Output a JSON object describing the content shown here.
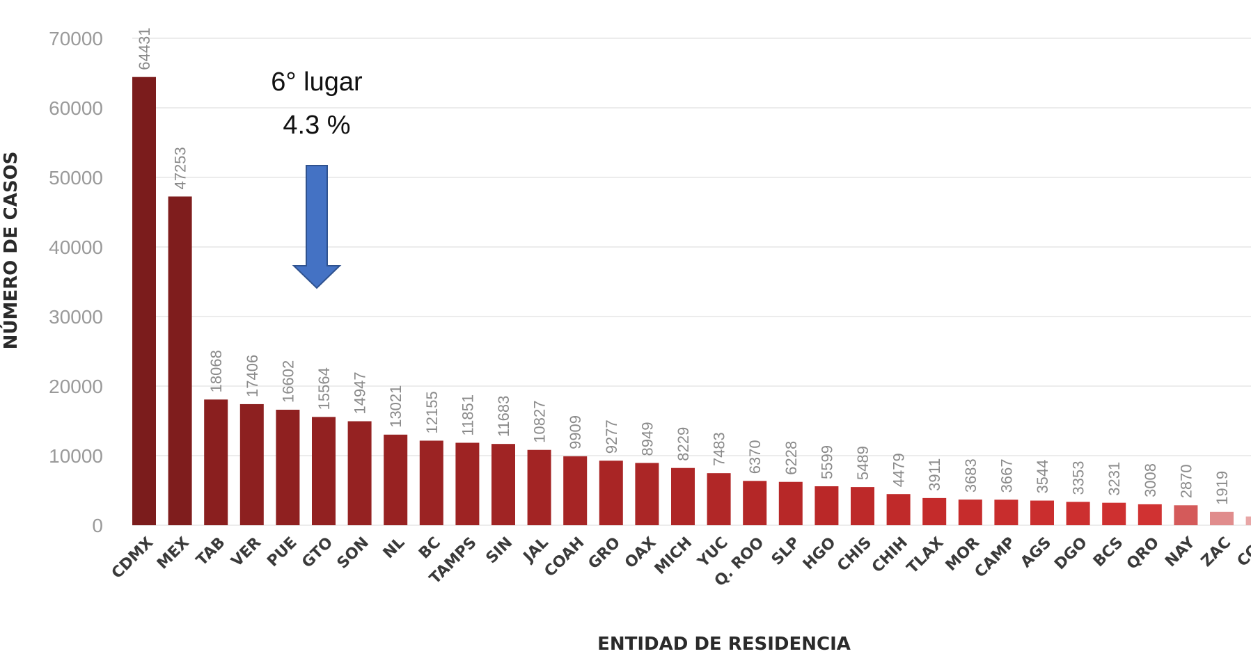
{
  "chart_data": {
    "type": "bar",
    "title": "",
    "xlabel": "ENTIDAD DE RESIDENCIA",
    "ylabel": "NÚMERO DE CASOS",
    "ylim": [
      0,
      70000
    ],
    "yticks": [
      0,
      10000,
      20000,
      30000,
      40000,
      50000,
      60000,
      70000
    ],
    "grid": true,
    "categories": [
      "CDMX",
      "MEX",
      "TAB",
      "VER",
      "PUE",
      "GTO",
      "SON",
      "NL",
      "BC",
      "TAMPS",
      "SIN",
      "JAL",
      "COAH",
      "GRO",
      "OAX",
      "MICH",
      "YUC",
      "Q. ROO",
      "SLP",
      "HGO",
      "CHIS",
      "CHIH",
      "TLAX",
      "MOR",
      "CAMP",
      "AGS",
      "DGO",
      "BCS",
      "QRO",
      "NAY",
      "ZAC",
      "COL"
    ],
    "values": [
      64431,
      47253,
      18068,
      17406,
      16602,
      15564,
      14947,
      13021,
      12155,
      11851,
      11683,
      10827,
      9909,
      9277,
      8949,
      8229,
      7483,
      6370,
      6228,
      5599,
      5489,
      4479,
      3911,
      3683,
      3667,
      3544,
      3353,
      3231,
      3008,
      2870,
      1919,
      1249
    ],
    "colors": [
      "#7b1c1c",
      "#7f1d1d",
      "#8a1f1f",
      "#8d2020",
      "#8f2020",
      "#922121",
      "#952222",
      "#982222",
      "#9b2323",
      "#9e2323",
      "#a02424",
      "#a32424",
      "#a62525",
      "#a92525",
      "#ab2626",
      "#ae2626",
      "#b12727",
      "#b42727",
      "#b72828",
      "#ba2828",
      "#bd2929",
      "#c02a2a",
      "#c42b2b",
      "#c62c2c",
      "#c82d2d",
      "#ca2e2e",
      "#cc2f2f",
      "#ce3030",
      "#d03232",
      "#d45a5a",
      "#e08c8c",
      "#e8a6a6"
    ],
    "annotation": {
      "line1": "6° lugar",
      "line2": "4.3 %",
      "target_category": "GTO",
      "arrow_color": "#4472c4",
      "arrow_outline": "#2f528f"
    }
  }
}
